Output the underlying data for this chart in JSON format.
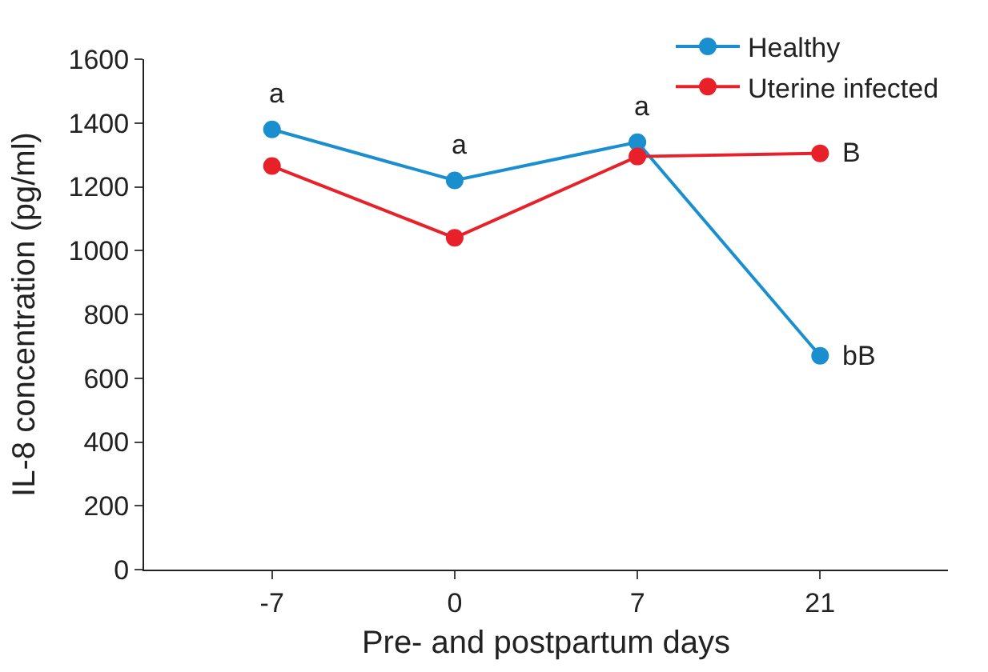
{
  "chart_data": {
    "type": "line",
    "xlabel": "Pre- and postpartum days",
    "ylabel": "IL-8 concentration (pg/ml)",
    "categories": [
      "-7",
      "0",
      "7",
      "21"
    ],
    "series": [
      {
        "name": "Healthy",
        "color": "#1a8fd0",
        "values": [
          1380,
          1220,
          1340,
          670
        ]
      },
      {
        "name": "Uterine infected",
        "color": "#e8202a",
        "values": [
          1265,
          1040,
          1295,
          1305
        ]
      }
    ],
    "ylim": [
      0,
      1600
    ],
    "yticks": [
      0,
      200,
      400,
      600,
      800,
      1000,
      1200,
      1400,
      1600
    ],
    "marker": "circle",
    "line_style": "solid",
    "legend": "top right",
    "annotations": [
      {
        "text": "a",
        "x": "-7",
        "y": 1380
      },
      {
        "text": "a",
        "x": "0",
        "y": 1220
      },
      {
        "text": "a",
        "x": "7",
        "y": 1340
      },
      {
        "text": "B",
        "x": "21",
        "y": 1305
      },
      {
        "text": "bB",
        "x": "21",
        "y": 670
      }
    ]
  }
}
